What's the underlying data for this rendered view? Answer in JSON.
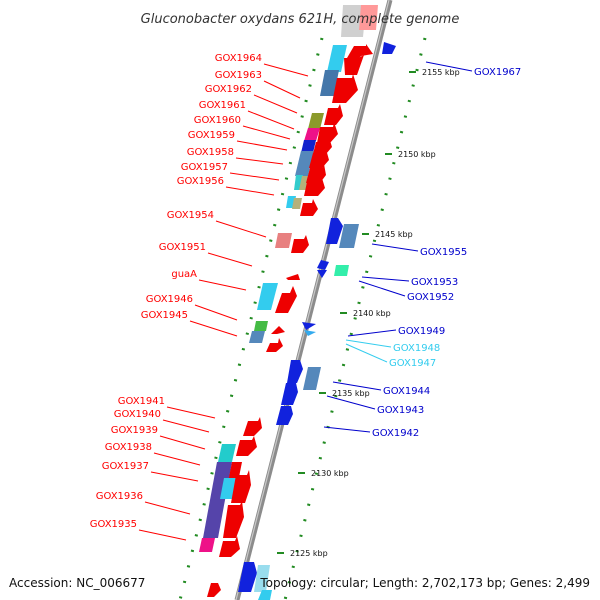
{
  "title": "Gluconobacter oxydans 621H, complete genome",
  "accession": "Accession: NC_006677",
  "topology": "Topology: circular; Length: 2,702,173 bp; Genes: 2,499",
  "colors": {
    "background": "#ffffff",
    "left_label": "#ff0000",
    "right_label": "#0000cc",
    "right_label_light": "#33ccee",
    "backbone": "#8c8c8c",
    "scale_dots": "#228b22"
  },
  "scale": [
    {
      "label": "2155 kbp"
    },
    {
      "label": "2150 kbp"
    },
    {
      "label": "2145 kbp"
    },
    {
      "label": "2140 kbp"
    },
    {
      "label": "2135 kbp"
    },
    {
      "label": "2130 kbp"
    },
    {
      "label": "2125 kbp"
    }
  ],
  "left_labels": [
    {
      "text": "GOX1964"
    },
    {
      "text": "GOX1963"
    },
    {
      "text": "GOX1962"
    },
    {
      "text": "GOX1961"
    },
    {
      "text": "GOX1960"
    },
    {
      "text": "GOX1959"
    },
    {
      "text": "GOX1958"
    },
    {
      "text": "GOX1957"
    },
    {
      "text": "GOX1956"
    },
    {
      "text": "GOX1954"
    },
    {
      "text": "GOX1951"
    },
    {
      "text": "guaA"
    },
    {
      "text": "GOX1946"
    },
    {
      "text": "GOX1945"
    },
    {
      "text": "GOX1941"
    },
    {
      "text": "GOX1940"
    },
    {
      "text": "GOX1939"
    },
    {
      "text": "GOX1938"
    },
    {
      "text": "GOX1937"
    },
    {
      "text": "GOX1936"
    },
    {
      "text": "GOX1935"
    }
  ],
  "right_labels": [
    {
      "text": "GOX1967"
    },
    {
      "text": "GOX1955"
    },
    {
      "text": "GOX1953"
    },
    {
      "text": "GOX1952"
    },
    {
      "text": "GOX1949"
    },
    {
      "text": "GOX1948"
    },
    {
      "text": "GOX1947"
    },
    {
      "text": "GOX1944"
    },
    {
      "text": "GOX1943"
    },
    {
      "text": "GOX1942"
    }
  ]
}
